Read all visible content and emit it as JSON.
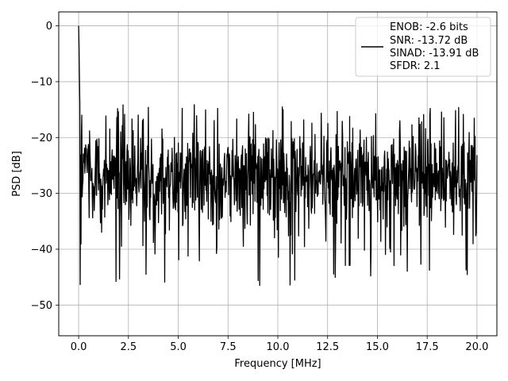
{
  "chart_data": {
    "type": "line",
    "xlabel": "Frequency [MHz]",
    "ylabel": "PSD [dB]",
    "xlim": [
      -1.0,
      21.0
    ],
    "ylim": [
      -55.5,
      2.5
    ],
    "grid": true,
    "legend_position": "top-right",
    "x_ticks": [
      0.0,
      2.5,
      5.0,
      7.5,
      10.0,
      12.5,
      15.0,
      17.5,
      20.0
    ],
    "x_tick_labels": [
      "0.0",
      "2.5",
      "5.0",
      "7.5",
      "10.0",
      "12.5",
      "15.0",
      "17.5",
      "20.0"
    ],
    "y_ticks": [
      0,
      -10,
      -20,
      -30,
      -40,
      -50
    ],
    "y_tick_labels": [
      "0",
      "−10",
      "−20",
      "−30",
      "−40",
      "−50"
    ],
    "legend": {
      "lines": [
        "ENOB: -2.6 bits",
        "SNR: -13.72 dB",
        "SINAD: -13.91 dB",
        "SFDR: 2.1"
      ],
      "color": "#000000"
    },
    "series": [
      {
        "color": "#000000",
        "points": 1024,
        "x_range": [
          0.0,
          20.0
        ],
        "peak": {
          "x": 0.0,
          "y": 0.0
        },
        "noise_floor_mean": -27,
        "noise_upper": -14,
        "noise_lower": -52.5
      }
    ]
  }
}
